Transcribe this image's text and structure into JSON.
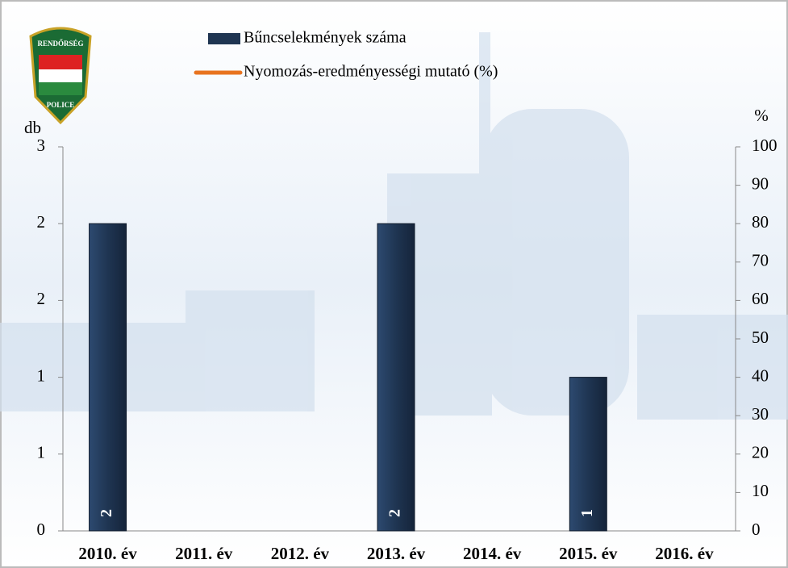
{
  "logo": {
    "top": "RENDŐRSÉG",
    "bottom": "POLICE"
  },
  "chart_data": {
    "type": "bar",
    "categories": [
      "2010. év",
      "2011. év",
      "2012. év",
      "2013. év",
      "2014. év",
      "2015. év",
      "2016. év"
    ],
    "series": [
      {
        "name": "Bűncselekmények száma",
        "color": "#1f3552",
        "values": [
          2,
          0,
          0,
          2,
          0,
          1,
          0
        ]
      },
      {
        "name": "Nyomozás-eredményességi mutató (%)",
        "color": "#e8731f",
        "type": "line",
        "axis": "y2",
        "values": [
          null,
          null,
          null,
          null,
          null,
          null,
          null
        ]
      }
    ],
    "y_label": "db",
    "y2_label": "%",
    "ylim": [
      0,
      2.5
    ],
    "yticks": [
      0,
      {
        "value": 0.5,
        "label": "1"
      },
      1,
      {
        "value": 1.5,
        "label": "2"
      },
      2,
      {
        "value": 2.5,
        "label": "3"
      }
    ],
    "y2lim": [
      0,
      100
    ],
    "y2ticks": [
      0,
      10,
      20,
      30,
      40,
      50,
      60,
      70,
      80,
      90,
      100
    ]
  }
}
